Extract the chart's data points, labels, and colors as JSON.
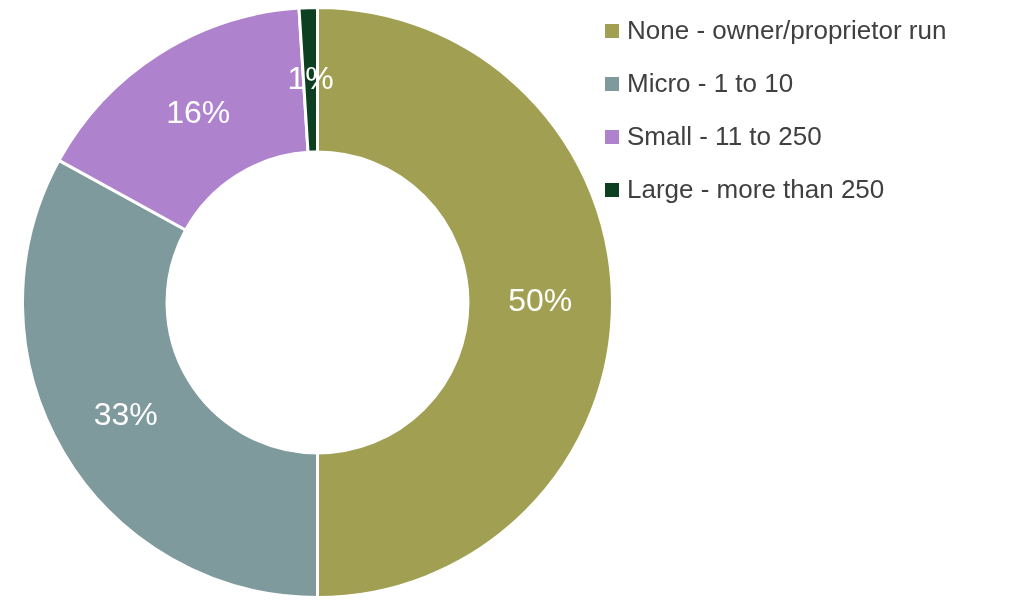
{
  "chart_data": {
    "type": "donut",
    "categories": [
      "None - owner/proprietor run",
      "Micro - 1 to 10",
      "Small - 11 to 250",
      "Large - more than 250"
    ],
    "values": [
      50,
      33,
      16,
      1
    ],
    "colors": [
      "#a1a052",
      "#7f9a9c",
      "#ae82cc",
      "#0d4020"
    ],
    "value_labels": [
      "50%",
      "33%",
      "16%",
      "1%"
    ],
    "legend": "top right"
  }
}
